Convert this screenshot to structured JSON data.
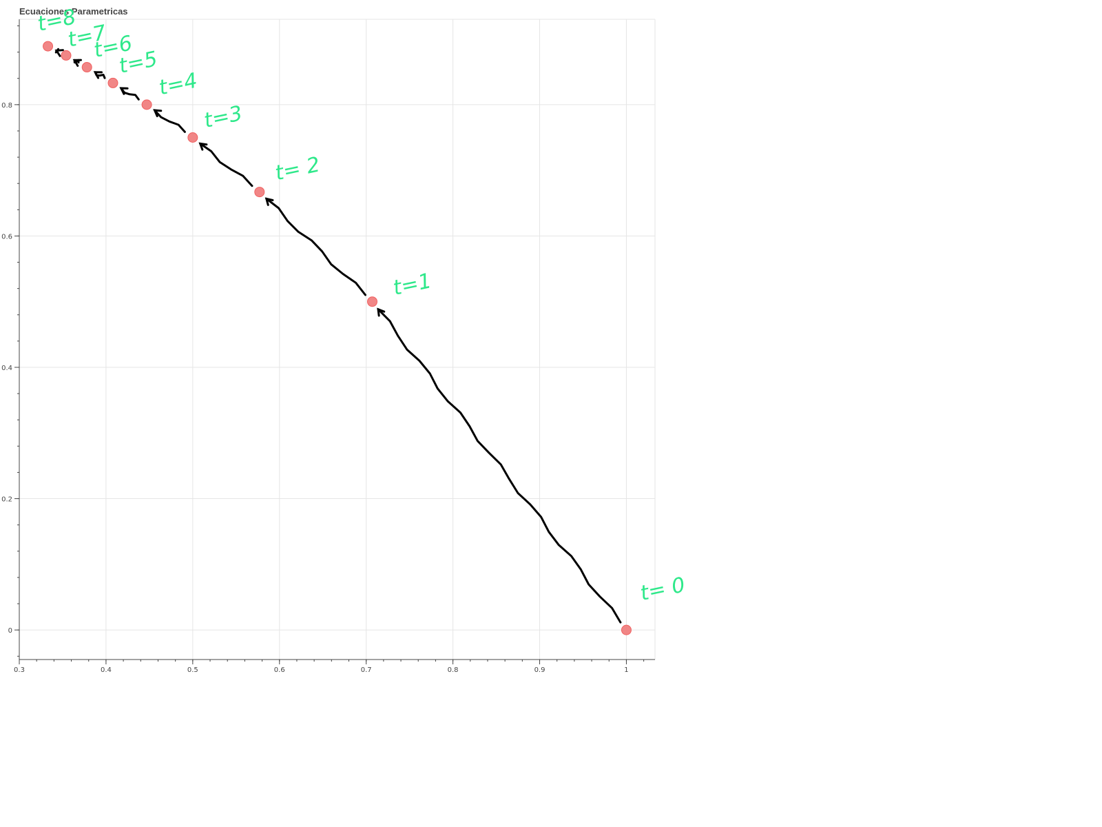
{
  "chart_data": {
    "type": "scatter",
    "title": "Ecuaciones Parametricas",
    "xlabel": "",
    "ylabel": "",
    "xlim": [
      0.3,
      1.033
    ],
    "ylim": [
      -0.045,
      0.93
    ],
    "grid": true,
    "legend": "none",
    "x_ticks": [
      0.3,
      0.4,
      0.5,
      0.6,
      0.7,
      0.8,
      0.9,
      1
    ],
    "x_tick_labels": [
      "0.3",
      "0.4",
      "0.5",
      "0.6",
      "0.7",
      "0.8",
      "0.9",
      "1"
    ],
    "y_ticks": [
      0,
      0.2,
      0.4,
      0.6,
      0.8
    ],
    "y_tick_labels": [
      "0",
      "0.2",
      "0.4",
      "0.6",
      "0.8"
    ],
    "series": [
      {
        "color": "#f08080",
        "points": [
          {
            "x": 1.0,
            "y": 0.0
          },
          {
            "x": 0.707,
            "y": 0.5
          },
          {
            "x": 0.577,
            "y": 0.667
          },
          {
            "x": 0.5,
            "y": 0.75
          },
          {
            "x": 0.447,
            "y": 0.8
          },
          {
            "x": 0.408,
            "y": 0.833
          },
          {
            "x": 0.378,
            "y": 0.857
          },
          {
            "x": 0.354,
            "y": 0.875
          },
          {
            "x": 0.333,
            "y": 0.889
          }
        ]
      }
    ],
    "annotations": [
      {
        "text": "t= 0",
        "x": 1.018,
        "y": 0.045
      },
      {
        "text": "t=1",
        "x": 0.733,
        "y": 0.51
      },
      {
        "text": "t= 2",
        "x": 0.597,
        "y": 0.685
      },
      {
        "text": "t=3",
        "x": 0.515,
        "y": 0.765
      },
      {
        "text": "t=4",
        "x": 0.463,
        "y": 0.815
      },
      {
        "text": "t=5",
        "x": 0.417,
        "y": 0.848
      },
      {
        "text": "t=6",
        "x": 0.388,
        "y": 0.872
      },
      {
        "text": "t=7",
        "x": 0.358,
        "y": 0.888
      },
      {
        "text": "t=8",
        "x": 0.323,
        "y": 0.912
      }
    ],
    "annotation_color": "#2ee88a",
    "arrow_color": "#000000"
  }
}
